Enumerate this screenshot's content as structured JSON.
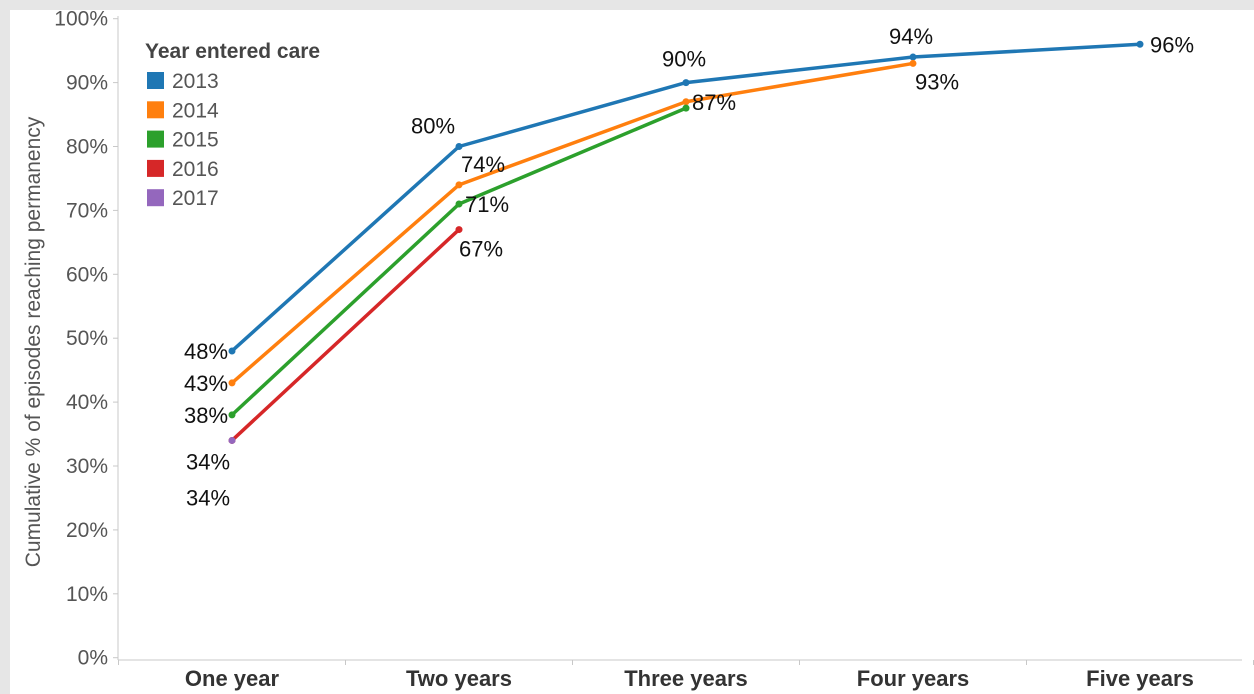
{
  "chart_data": {
    "type": "line",
    "xlabel": "",
    "ylabel": "Cumulative % of episodes reaching permanency",
    "categories": [
      "One year",
      "Two years",
      "Three years",
      "Four years",
      "Five years"
    ],
    "ylim": [
      0,
      100
    ],
    "yticks": [
      "0%",
      "10%",
      "20%",
      "30%",
      "40%",
      "50%",
      "60%",
      "70%",
      "80%",
      "90%",
      "100%"
    ],
    "legend": {
      "title": "Year entered care",
      "placement": "top-left",
      "entries": [
        "2013",
        "2014",
        "2015",
        "2016",
        "2017"
      ]
    },
    "series": [
      {
        "name": "2013",
        "color": "#1f77b4",
        "values": [
          48,
          80,
          90,
          94,
          96
        ],
        "labels": [
          "48%",
          "80%",
          "90%",
          "94%",
          "96%"
        ]
      },
      {
        "name": "2014",
        "color": "#ff7f0e",
        "values": [
          43,
          74,
          87,
          93,
          null
        ],
        "labels": [
          "43%",
          "74%",
          "87%",
          "93%",
          ""
        ]
      },
      {
        "name": "2015",
        "color": "#2ca02c",
        "values": [
          38,
          71,
          86,
          null,
          null
        ],
        "labels": [
          "38%",
          "71%",
          "",
          "",
          ""
        ]
      },
      {
        "name": "2016",
        "color": "#d62728",
        "values": [
          34,
          67,
          null,
          null,
          null
        ],
        "labels": [
          "34%",
          "67%",
          "",
          "",
          ""
        ]
      },
      {
        "name": "2017",
        "color": "#9467bd",
        "values": [
          34,
          null,
          null,
          null,
          null
        ],
        "labels": [
          "34%",
          "",
          "",
          "",
          ""
        ]
      }
    ]
  }
}
